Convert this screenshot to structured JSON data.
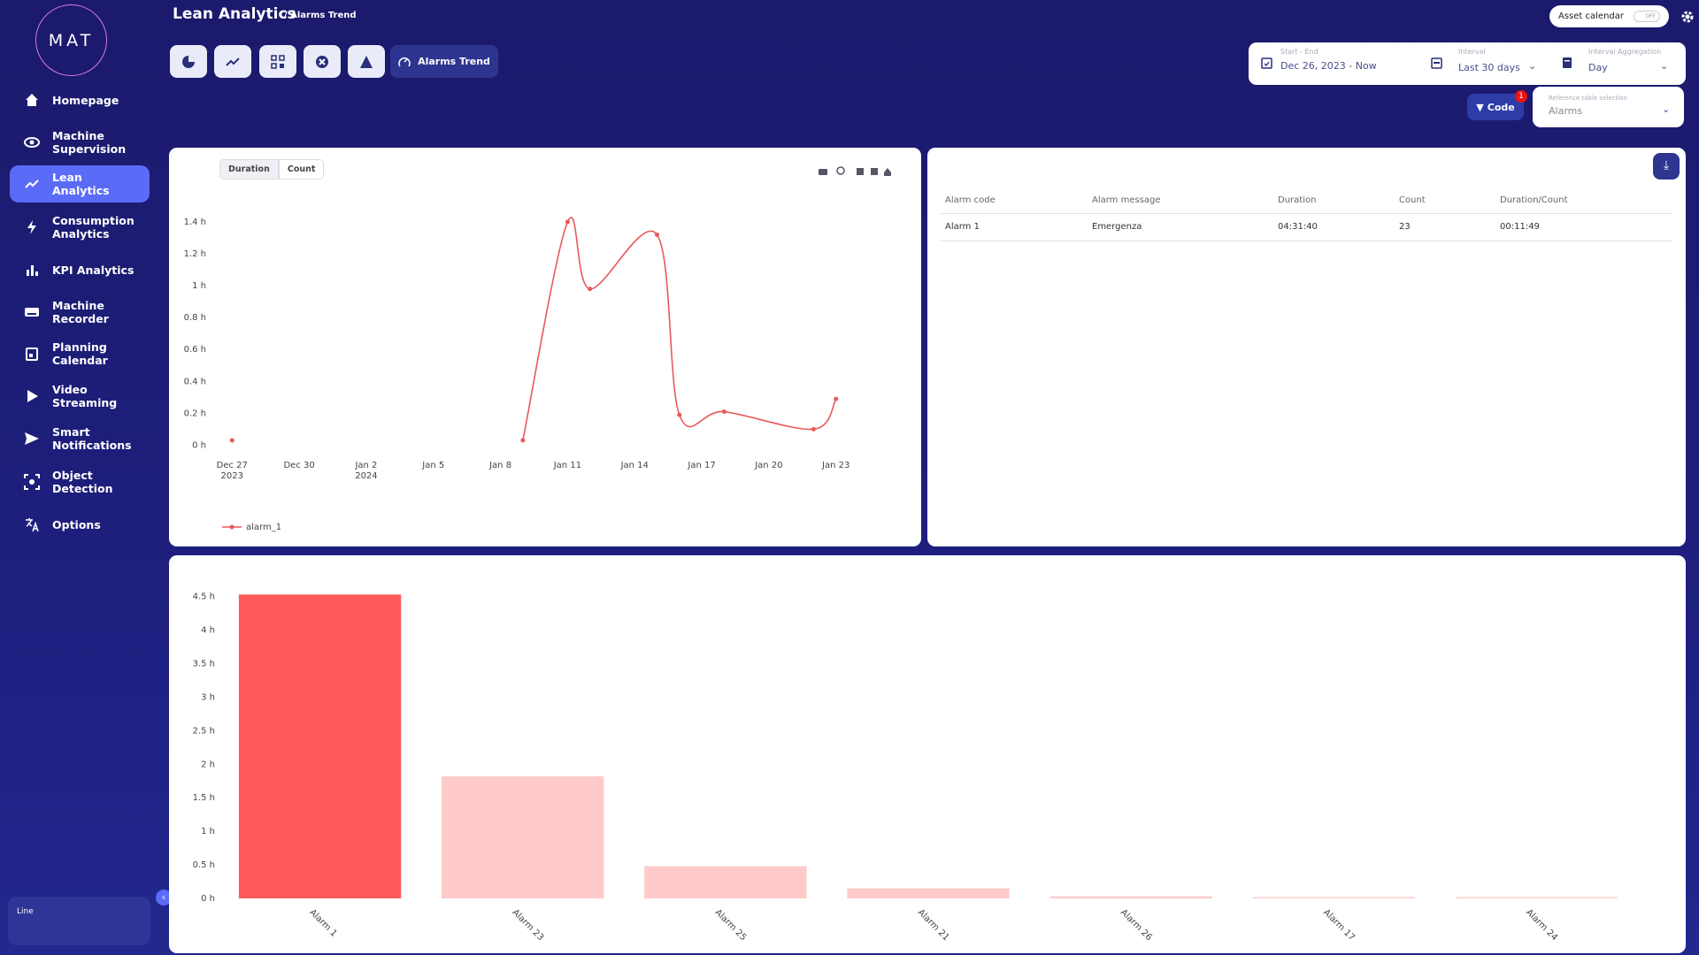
{
  "sidebar": {
    "logo": "MAT",
    "nav": [
      "Homepage",
      "Machine Supervision",
      "Lean Analytics",
      "Consumption Analytics",
      "KPI Analytics",
      "Machine Recorder",
      "Planning Calendar",
      "Video Streaming",
      "Smart Notifications",
      "Object Detection",
      "Options"
    ],
    "bottom": "Line"
  },
  "header": {
    "title": "Lean Analytics",
    "breadcrumb": "/ Alarms Trend",
    "asset_calendar": "Asset calendar",
    "toggle": "OFF"
  },
  "toolbar": {
    "active_tab": "Alarms Trend"
  },
  "filters": {
    "start_end_label": "Start - End",
    "start_end": "Dec 26, 2023 - Now",
    "interval_label": "Interval",
    "interval": "Last 30 days",
    "aggregation_label": "Interval Aggregation",
    "aggregation": "Day",
    "code_button": "Code",
    "code_badge": 1,
    "reference_label": "Reference table selection",
    "reference": "Alarms"
  },
  "trend_tabs": [
    "Duration",
    "Count"
  ],
  "table": {
    "columns": [
      "Alarm code",
      "Alarm message",
      "Duration",
      "Count",
      "Duration/Count"
    ],
    "rows": [
      [
        "Alarm 1",
        "Emergenza",
        "04:31:40",
        23,
        "00:11:49"
      ]
    ]
  },
  "chart_data": [
    {
      "type": "line",
      "x": [
        "2023-12-27",
        "2023-12-28",
        "2024-01-09",
        "2024-01-11",
        "2024-01-12",
        "2024-01-15",
        "2024-01-16",
        "2024-01-18",
        "2024-01-22",
        "2024-01-23"
      ],
      "series": [
        {
          "name": "alarm_1",
          "color": "#e8595b",
          "values": [
            0.03,
            null,
            0.03,
            1.4,
            0.98,
            1.32,
            0.19,
            0.21,
            0.1,
            0.29
          ]
        }
      ],
      "xlim": [
        "2023-12-26",
        "2024-01-24"
      ],
      "xticks": [
        {
          "value": "2023-12-27",
          "label": "Dec 27\n2023"
        },
        {
          "value": "2023-12-30",
          "label": "Dec 30"
        },
        {
          "value": "2024-01-02",
          "label": "Jan 2\n2024"
        },
        {
          "value": "2024-01-05",
          "label": "Jan 5"
        },
        {
          "value": "2024-01-08",
          "label": "Jan 8"
        },
        {
          "value": "2024-01-11",
          "label": "Jan 11"
        },
        {
          "value": "2024-01-14",
          "label": "Jan 14"
        },
        {
          "value": "2024-01-17",
          "label": "Jan 17"
        },
        {
          "value": "2024-01-20",
          "label": "Jan 20"
        },
        {
          "value": "2024-01-23",
          "label": "Jan 23"
        }
      ],
      "ylim": [
        -0.07,
        1.5
      ],
      "yticks": [
        {
          "value": 0,
          "label": "0 h"
        },
        {
          "value": 0.2,
          "label": "0.2 h"
        },
        {
          "value": 0.4,
          "label": "0.4 h"
        },
        {
          "value": 0.6,
          "label": "0.6 h"
        },
        {
          "value": 0.8,
          "label": "0.8 h"
        },
        {
          "value": 1,
          "label": "1 h"
        },
        {
          "value": 1.2,
          "label": "1.2 h"
        },
        {
          "value": 1.4,
          "label": "1.4 h"
        }
      ],
      "grid": false
    },
    {
      "type": "bar",
      "categories": [
        "Alarm 1",
        "Alarm 23",
        "Alarm 25",
        "Alarm 21",
        "Alarm 26",
        "Alarm 17",
        "Alarm 24"
      ],
      "values": [
        4.53,
        1.82,
        0.48,
        0.15,
        0.03,
        0.02,
        0.02
      ],
      "colors": [
        "#ff5a5a",
        "#ffcaca",
        "#ffcaca",
        "#ffcaca",
        "#ffcaca",
        "#ffcaca",
        "#ffcaca"
      ],
      "ylim": [
        0,
        4.6
      ],
      "yticks": [
        {
          "value": 0,
          "label": "0 h"
        },
        {
          "value": 0.5,
          "label": "0.5 h"
        },
        {
          "value": 1,
          "label": "1 h"
        },
        {
          "value": 1.5,
          "label": "1.5 h"
        },
        {
          "value": 2,
          "label": "2 h"
        },
        {
          "value": 2.5,
          "label": "2.5 h"
        },
        {
          "value": 3,
          "label": "3 h"
        },
        {
          "value": 3.5,
          "label": "3.5 h"
        },
        {
          "value": 4,
          "label": "4 h"
        },
        {
          "value": 4.5,
          "label": "4.5 h"
        }
      ],
      "grid": false
    }
  ]
}
